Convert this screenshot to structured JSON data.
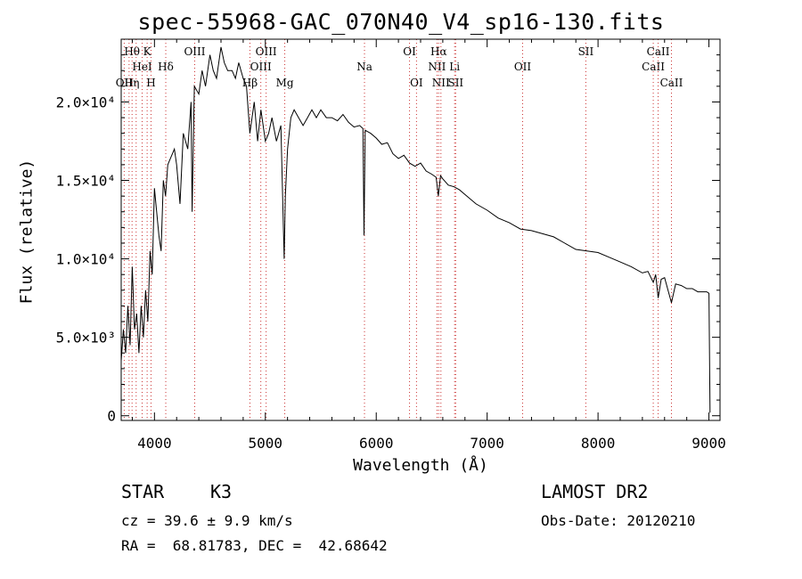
{
  "chart_data": {
    "type": "line",
    "title": "spec-55968-GAC_070N40_V4_sp16-130.fits",
    "xlabel": "Wavelength (Å)",
    "ylabel": "Flux (relative)",
    "xlim": [
      3700,
      9100
    ],
    "ylim": [
      -300,
      24000
    ],
    "x_ticks": [
      {
        "value": 4000,
        "label": "4000"
      },
      {
        "value": 5000,
        "label": "5000"
      },
      {
        "value": 6000,
        "label": "6000"
      },
      {
        "value": 7000,
        "label": "7000"
      },
      {
        "value": 8000,
        "label": "8000"
      },
      {
        "value": 9000,
        "label": "9000"
      }
    ],
    "y_ticks": [
      {
        "value": 0,
        "label": "0"
      },
      {
        "value": 5000,
        "label": "5.0×10³"
      },
      {
        "value": 10000,
        "label": "1.0×10⁴"
      },
      {
        "value": 15000,
        "label": "1.5×10⁴"
      },
      {
        "value": 20000,
        "label": "2.0×10⁴"
      }
    ],
    "series": [
      {
        "x": [
          3700,
          3720,
          3740,
          3760,
          3780,
          3800,
          3820,
          3840,
          3860,
          3880,
          3900,
          3920,
          3940,
          3960,
          3980,
          4000,
          4020,
          4040,
          4060,
          4080,
          4100,
          4120,
          4150,
          4180,
          4200,
          4230,
          4260,
          4300,
          4330,
          4340,
          4360,
          4400,
          4430,
          4460,
          4500,
          4530,
          4560,
          4600,
          4630,
          4660,
          4700,
          4730,
          4760,
          4800,
          4830,
          4860,
          4900,
          4930,
          4960,
          5000,
          5030,
          5060,
          5100,
          5140,
          5170,
          5180,
          5200,
          5230,
          5260,
          5300,
          5340,
          5380,
          5420,
          5460,
          5500,
          5550,
          5600,
          5650,
          5700,
          5750,
          5800,
          5850,
          5880,
          5890,
          5900,
          5950,
          6000,
          6050,
          6100,
          6150,
          6200,
          6250,
          6300,
          6350,
          6400,
          6450,
          6500,
          6540,
          6560,
          6580,
          6600,
          6650,
          6700,
          6750,
          6800,
          6900,
          7000,
          7100,
          7200,
          7300,
          7400,
          7500,
          7600,
          7700,
          7800,
          7900,
          8000,
          8100,
          8200,
          8300,
          8400,
          8450,
          8498,
          8520,
          8542,
          8570,
          8600,
          8662,
          8700,
          8750,
          8800,
          8850,
          8900,
          8980,
          9000,
          9010
        ],
        "y": [
          3500,
          5500,
          4000,
          7000,
          4500,
          9500,
          5500,
          6500,
          4000,
          7000,
          5000,
          8000,
          6000,
          10500,
          9000,
          14500,
          13000,
          11500,
          10500,
          15000,
          14000,
          16000,
          16500,
          17000,
          16000,
          13500,
          18000,
          17000,
          20000,
          13000,
          21000,
          20500,
          22000,
          21000,
          23000,
          22000,
          21500,
          23500,
          22500,
          22000,
          22000,
          21500,
          22500,
          21500,
          21000,
          18000,
          20000,
          17500,
          19500,
          17500,
          18000,
          19000,
          17500,
          18500,
          10000,
          14000,
          17000,
          19000,
          19500,
          19000,
          18500,
          19000,
          19500,
          19000,
          19500,
          19000,
          19000,
          18800,
          19200,
          18700,
          18400,
          18500,
          18300,
          11500,
          18200,
          18000,
          17700,
          17300,
          17400,
          16700,
          16400,
          16600,
          16100,
          15900,
          16100,
          15600,
          15400,
          15200,
          14000,
          15300,
          15100,
          14700,
          14600,
          14400,
          14100,
          13500,
          13100,
          12600,
          12300,
          11900,
          11800,
          11600,
          11400,
          11000,
          10600,
          10500,
          10400,
          10100,
          9800,
          9500,
          9100,
          9200,
          8500,
          9000,
          7500,
          8700,
          8800,
          7200,
          8400,
          8300,
          8100,
          8100,
          7900,
          7900,
          7800,
          200
        ]
      }
    ],
    "line_annotations": [
      {
        "x": 3727,
        "label": "OII",
        "row": 3
      },
      {
        "x": 3771,
        "label": "H",
        "row": 3
      },
      {
        "x": 3798,
        "label": "Hθ",
        "row": 1
      },
      {
        "x": 3835,
        "label": "η",
        "row": 3
      },
      {
        "x": 3889,
        "label": "HeI",
        "row": 2
      },
      {
        "x": 3934,
        "label": "K",
        "row": 1
      },
      {
        "x": 3969,
        "label": "H",
        "row": 3
      },
      {
        "x": 4102,
        "label": "Hδ",
        "row": 2
      },
      {
        "x": 4363,
        "label": "OIII",
        "row": 1
      },
      {
        "x": 4861,
        "label": "Hβ",
        "row": 3
      },
      {
        "x": 4959,
        "label": "OIII",
        "row": 2
      },
      {
        "x": 5007,
        "label": "OIII",
        "row": 1
      },
      {
        "x": 5175,
        "label": "Mg",
        "row": 3
      },
      {
        "x": 5894,
        "label": "Na",
        "row": 2
      },
      {
        "x": 6300,
        "label": "OI",
        "row": 1
      },
      {
        "x": 6363,
        "label": "OI",
        "row": 3
      },
      {
        "x": 6548,
        "label": "NII",
        "row": 2
      },
      {
        "x": 6563,
        "label": "Hα",
        "row": 1
      },
      {
        "x": 6583,
        "label": "NII",
        "row": 3
      },
      {
        "x": 6707,
        "label": "Li",
        "row": 2
      },
      {
        "x": 6716,
        "label": "SII",
        "row": 3
      },
      {
        "x": 7320,
        "label": "OII",
        "row": 2
      },
      {
        "x": 7890,
        "label": "SII",
        "row": 1
      },
      {
        "x": 8498,
        "label": "CaII",
        "row": 2
      },
      {
        "x": 8542,
        "label": "CaII",
        "row": 1
      },
      {
        "x": 8662,
        "label": "CaII",
        "row": 3
      }
    ]
  },
  "info": {
    "object_class": "STAR",
    "subclass": "K3",
    "survey": "LAMOST DR2",
    "redshift_text": "cz = 39.6 ± 9.9 km/s",
    "obs_date": "Obs-Date: 20120210",
    "coords": "RA =  68.81783, DEC =  42.68642"
  }
}
